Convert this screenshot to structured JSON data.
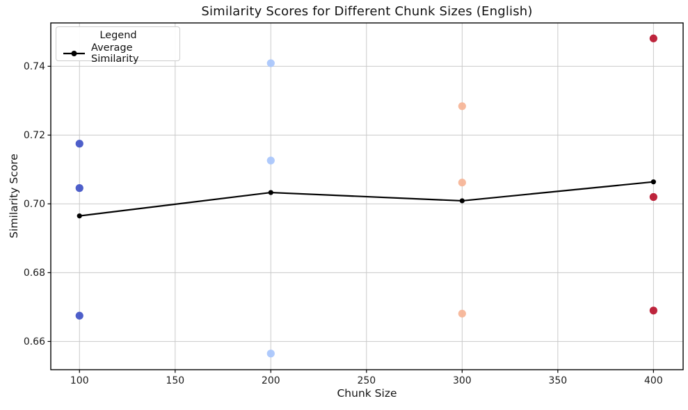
{
  "chart_data": {
    "type": "scatter",
    "title": "Similarity Scores for Different Chunk Sizes (English)",
    "xlabel": "Chunk Size",
    "ylabel": "Similarity Score",
    "xlim": [
      85,
      415.5
    ],
    "ylim": [
      0.6518,
      0.7526
    ],
    "xticks": [
      100,
      150,
      200,
      250,
      300,
      350,
      400
    ],
    "yticks": [
      0.66,
      0.68,
      0.7,
      0.72,
      0.74
    ],
    "yticklabels": [
      "0.66",
      "0.68",
      "0.70",
      "0.72",
      "0.74"
    ],
    "grid": true,
    "grid_color": "#c9c9c9",
    "spine_color": "#000000",
    "chunk_colors": {
      "100": "#3b4ec4",
      "200": "#a6c4fc",
      "300": "#f6b294",
      "400": "#b70d28"
    },
    "scatter_points": [
      {
        "x": 100,
        "y": 0.7175
      },
      {
        "x": 100,
        "y": 0.7046
      },
      {
        "x": 100,
        "y": 0.6675
      },
      {
        "x": 200,
        "y": 0.7409
      },
      {
        "x": 200,
        "y": 0.7126
      },
      {
        "x": 200,
        "y": 0.6565
      },
      {
        "x": 300,
        "y": 0.7284
      },
      {
        "x": 300,
        "y": 0.7062
      },
      {
        "x": 300,
        "y": 0.6681
      },
      {
        "x": 400,
        "y": 0.7481
      },
      {
        "x": 400,
        "y": 0.702
      },
      {
        "x": 400,
        "y": 0.669
      }
    ],
    "series": [
      {
        "name": "Average Similarity",
        "type": "line",
        "color": "#000000",
        "x": [
          100,
          200,
          300,
          400
        ],
        "values": [
          0.6965,
          0.7033,
          0.7009,
          0.7064
        ]
      }
    ],
    "legend": {
      "title": "Legend",
      "position": "upper-left",
      "items": [
        {
          "label": "Average Similarity",
          "color": "#000000",
          "marker": "line-dot"
        }
      ]
    }
  }
}
